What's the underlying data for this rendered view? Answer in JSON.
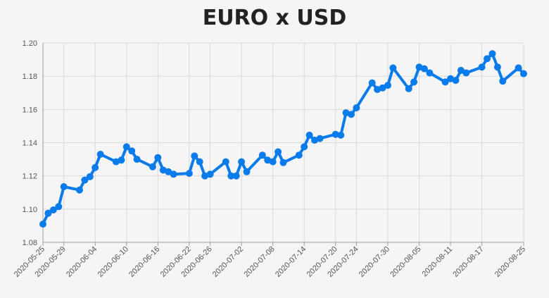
{
  "chart_data": {
    "type": "line",
    "title": "EURO x USD",
    "xlabel": "",
    "ylabel": "",
    "ylim": [
      1.08,
      1.2
    ],
    "yticks": [
      "1.08",
      "1.10",
      "1.12",
      "1.14",
      "1.16",
      "1.18",
      "1.20"
    ],
    "xtick_labels": [
      "2020-05-25",
      "2020-05-29",
      "2020-06-04",
      "2020-06-10",
      "2020-06-16",
      "2020-06-22",
      "2020-06-26",
      "2020-07-02",
      "2020-07-08",
      "2020-07-14",
      "2020-07-20",
      "2020-07-24",
      "2020-07-30",
      "2020-08-05",
      "2020-08-11",
      "2020-08-17",
      "2020-08-25"
    ],
    "grid": true,
    "colors": {
      "series": "#0a7bea"
    },
    "x": [
      "2020-05-25",
      "2020-05-26",
      "2020-05-27",
      "2020-05-28",
      "2020-05-29",
      "2020-06-01",
      "2020-06-02",
      "2020-06-03",
      "2020-06-04",
      "2020-06-05",
      "2020-06-08",
      "2020-06-09",
      "2020-06-10",
      "2020-06-11",
      "2020-06-12",
      "2020-06-15",
      "2020-06-16",
      "2020-06-17",
      "2020-06-18",
      "2020-06-19",
      "2020-06-22",
      "2020-06-23",
      "2020-06-24",
      "2020-06-25",
      "2020-06-26",
      "2020-06-29",
      "2020-06-30",
      "2020-07-01",
      "2020-07-02",
      "2020-07-03",
      "2020-07-06",
      "2020-07-07",
      "2020-07-08",
      "2020-07-09",
      "2020-07-10",
      "2020-07-13",
      "2020-07-14",
      "2020-07-15",
      "2020-07-16",
      "2020-07-17",
      "2020-07-20",
      "2020-07-21",
      "2020-07-22",
      "2020-07-23",
      "2020-07-24",
      "2020-07-27",
      "2020-07-28",
      "2020-07-29",
      "2020-07-30",
      "2020-07-31",
      "2020-08-03",
      "2020-08-04",
      "2020-08-05",
      "2020-08-06",
      "2020-08-07",
      "2020-08-10",
      "2020-08-11",
      "2020-08-12",
      "2020-08-13",
      "2020-08-14",
      "2020-08-17",
      "2020-08-18",
      "2020-08-19",
      "2020-08-20",
      "2020-08-21",
      "2020-08-24",
      "2020-08-25"
    ],
    "series": [
      {
        "values": [
          1.091,
          1.0975,
          1.0995,
          1.1015,
          1.1135,
          1.1115,
          1.1175,
          1.1195,
          1.125,
          1.133,
          1.1285,
          1.1295,
          1.1375,
          1.135,
          1.13,
          1.1255,
          1.131,
          1.1235,
          1.1225,
          1.121,
          1.1215,
          1.132,
          1.1285,
          1.12,
          1.121,
          1.1285,
          1.12,
          1.12,
          1.1285,
          1.1225,
          1.1325,
          1.1295,
          1.1285,
          1.1345,
          1.128,
          1.1325,
          1.1375,
          1.1445,
          1.1415,
          1.1425,
          1.145,
          1.1445,
          1.158,
          1.157,
          1.161,
          1.176,
          1.172,
          1.173,
          1.1745,
          1.185,
          1.1725,
          1.1765,
          1.1855,
          1.1845,
          1.182,
          1.1765,
          1.1785,
          1.1775,
          1.1835,
          1.182,
          1.1855,
          1.1905,
          1.1935,
          1.1855,
          1.177,
          1.185,
          1.1815
        ]
      }
    ]
  }
}
